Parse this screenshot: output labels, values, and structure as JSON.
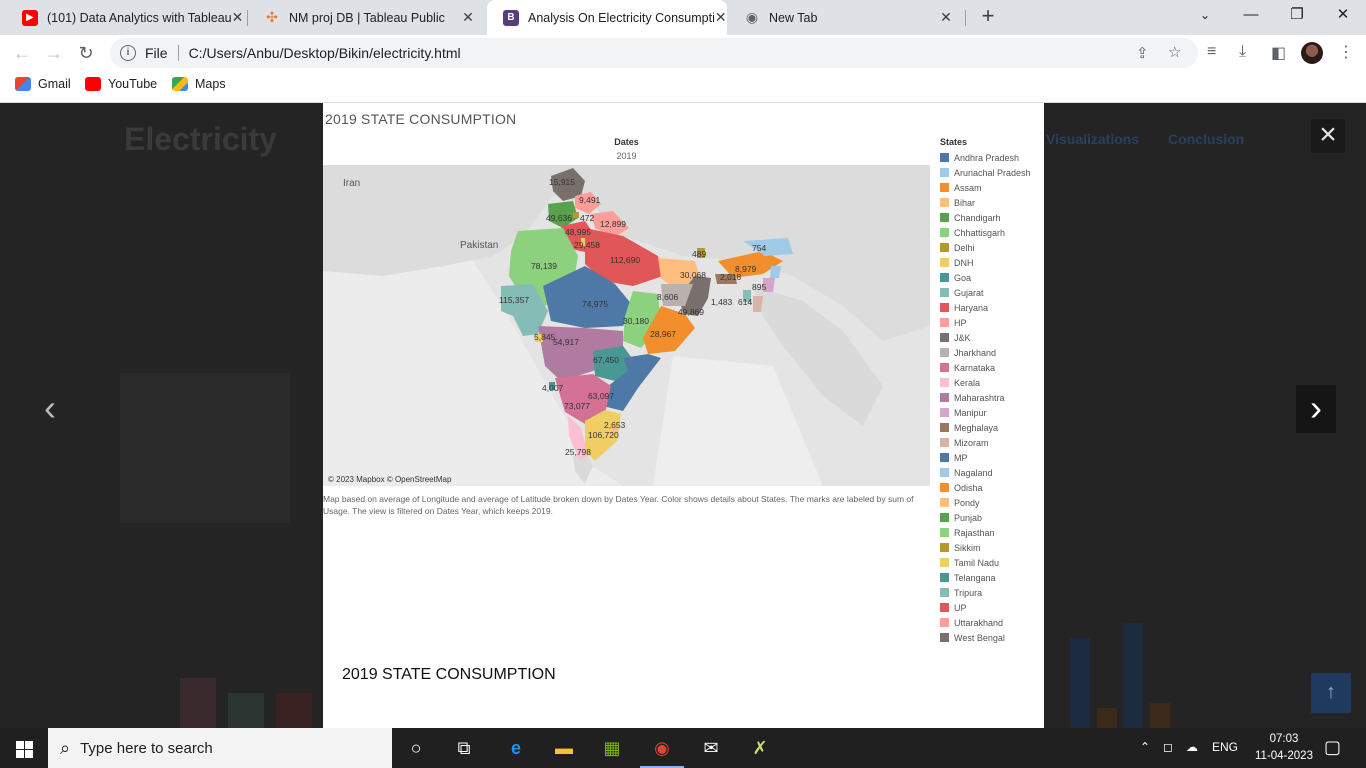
{
  "browser": {
    "tabs": [
      {
        "title": "(101) Data Analytics with Tableau",
        "icon": "youtube-icon"
      },
      {
        "title": "NM proj DB | Tableau Public",
        "icon": "tableau-icon"
      },
      {
        "title": "Analysis On Electricity Consumpti",
        "icon": "bootstrap-icon"
      },
      {
        "title": "New Tab",
        "icon": "chrome-icon"
      }
    ],
    "address_scheme": "File",
    "address": "C:/Users/Anbu/Desktop/Bikin/electricity.html",
    "bookmarks": [
      {
        "label": "Gmail",
        "color": "#ea4335"
      },
      {
        "label": "YouTube",
        "color": "#ff0000"
      },
      {
        "label": "Maps",
        "color": "#34a853"
      }
    ]
  },
  "page": {
    "brand": "Electricity",
    "nav": [
      "Visualizations",
      "Conclusion"
    ]
  },
  "lightbox": {
    "viz_title": "2019 STATE CONSUMPTION",
    "dates_header": "Dates",
    "dates_value": "2019",
    "map_credit": "© 2023 Mapbox © OpenStreetMap",
    "map_caption": "Map based on average of Longitude and average of Latitude broken down by Dates Year.  Color shows details about States.  The marks are labeled by sum of Usage. The view is filtered on Dates Year, which keeps 2019.",
    "country_labels": [
      "Iran",
      "Pakistan"
    ],
    "legend_title": "States",
    "legend": [
      {
        "name": "Andhra Pradesh",
        "color": "#4e79a7"
      },
      {
        "name": "Arunachal Pradesh",
        "color": "#a0cbe8"
      },
      {
        "name": "Assam",
        "color": "#f28e2b"
      },
      {
        "name": "Bihar",
        "color": "#ffbe7d"
      },
      {
        "name": "Chandigarh",
        "color": "#59a14f"
      },
      {
        "name": "Chhattisgarh",
        "color": "#8cd17d"
      },
      {
        "name": "Delhi",
        "color": "#b6992d"
      },
      {
        "name": "DNH",
        "color": "#f1ce63"
      },
      {
        "name": "Goa",
        "color": "#499894"
      },
      {
        "name": "Gujarat",
        "color": "#86bcb6"
      },
      {
        "name": "Haryana",
        "color": "#e15759"
      },
      {
        "name": "HP",
        "color": "#ff9d9a"
      },
      {
        "name": "J&K",
        "color": "#79706e"
      },
      {
        "name": "Jharkhand",
        "color": "#bab0ac"
      },
      {
        "name": "Karnataka",
        "color": "#d37295"
      },
      {
        "name": "Kerala",
        "color": "#fabfd2"
      },
      {
        "name": "Maharashtra",
        "color": "#b07aa1"
      },
      {
        "name": "Manipur",
        "color": "#d4a6c8"
      },
      {
        "name": "Meghalaya",
        "color": "#9d7660"
      },
      {
        "name": "Mizoram",
        "color": "#d7b5a6"
      },
      {
        "name": "MP",
        "color": "#4e79a7"
      },
      {
        "name": "Nagaland",
        "color": "#a0cbe8"
      },
      {
        "name": "Odisha",
        "color": "#f28e2b"
      },
      {
        "name": "Pondy",
        "color": "#ffbe7d"
      },
      {
        "name": "Punjab",
        "color": "#59a14f"
      },
      {
        "name": "Rajasthan",
        "color": "#8cd17d"
      },
      {
        "name": "Sikkim",
        "color": "#b6992d"
      },
      {
        "name": "Tamil Nadu",
        "color": "#f1ce63"
      },
      {
        "name": "Telangana",
        "color": "#499894"
      },
      {
        "name": "Tripura",
        "color": "#86bcb6"
      },
      {
        "name": "UP",
        "color": "#e15759"
      },
      {
        "name": "Uttarakhand",
        "color": "#ff9d9a"
      },
      {
        "name": "West Bengal",
        "color": "#79706e"
      }
    ],
    "map_labels": [
      "15,915",
      "9,491",
      "49,636",
      "472",
      "12,899",
      "48,995",
      "29,458",
      "754",
      "78,139",
      "112,690",
      "489",
      "8,979",
      "30,068",
      "2,018",
      "895",
      "115,357",
      "8,606",
      "1,483",
      "614",
      "74,975",
      "49,869",
      "30,180",
      "5,845",
      "54,917",
      "28,967",
      "67,450",
      "4,007",
      "63,097",
      "73,077",
      "2,653",
      "106,720",
      "25,798"
    ],
    "caption": "2019 STATE CONSUMPTION"
  },
  "taskbar": {
    "search_placeholder": "Type here to search",
    "language": "ENG",
    "time": "07:03",
    "date": "11-04-2023"
  }
}
